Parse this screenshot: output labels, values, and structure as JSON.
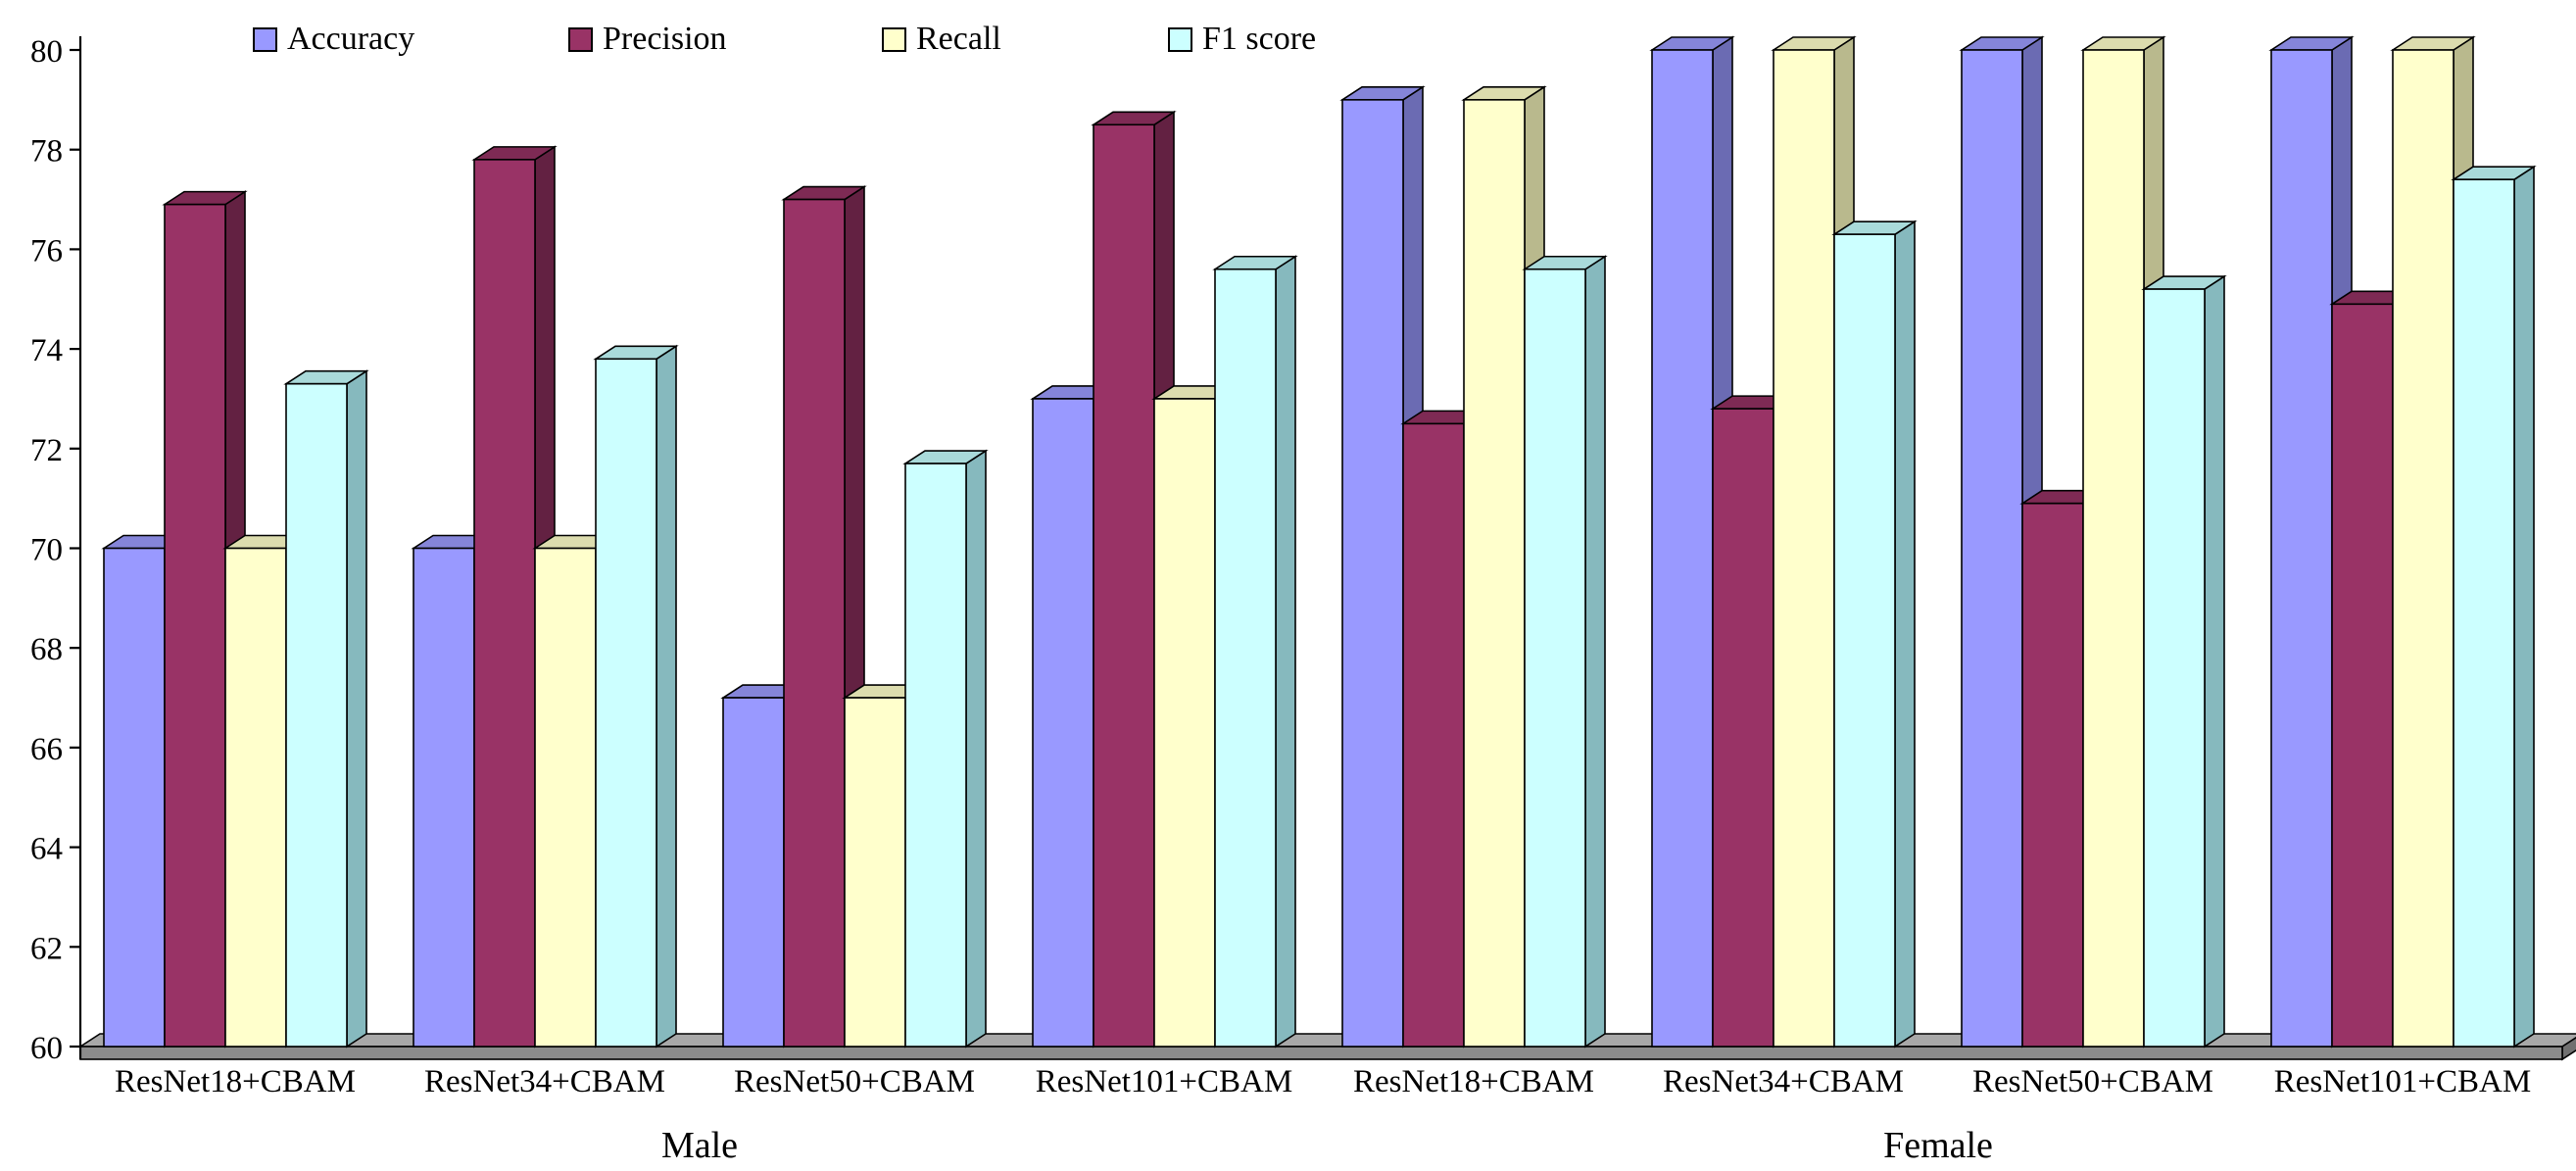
{
  "chart_data": {
    "type": "bar",
    "style": "3d-extruded-bars",
    "title": "",
    "xlabel": "",
    "ylabel": "",
    "ylim": [
      60,
      80
    ],
    "yticks": [
      60,
      62,
      64,
      66,
      68,
      70,
      72,
      74,
      76,
      78,
      80
    ],
    "grid": false,
    "legend_position": "top",
    "groups": [
      "Male",
      "Female"
    ],
    "categories": [
      "ResNet18+CBAM",
      "ResNet34+CBAM",
      "ResNet50+CBAM",
      "ResNet101+CBAM",
      "ResNet18+CBAM",
      "ResNet34+CBAM",
      "ResNet50+CBAM",
      "ResNet101+CBAM"
    ],
    "category_groups": [
      "Male",
      "Male",
      "Male",
      "Male",
      "Female",
      "Female",
      "Female",
      "Female"
    ],
    "series": [
      {
        "name": "Accuracy",
        "color": "#9999ff",
        "top": "#8585d9",
        "side": "#6b6bb3",
        "values": [
          70,
          70,
          67,
          73,
          79,
          80,
          80,
          80
        ]
      },
      {
        "name": "Precision",
        "color": "#993366",
        "top": "#7e2a54",
        "side": "#632142",
        "values": [
          76.9,
          77.8,
          77.0,
          78.5,
          72.5,
          72.8,
          70.9,
          74.9
        ]
      },
      {
        "name": "Recall",
        "color": "#ffffcc",
        "top": "#dcdcae",
        "side": "#b9b98d",
        "values": [
          70,
          70,
          67,
          73,
          79,
          80,
          80,
          80
        ]
      },
      {
        "name": "F1 score",
        "color": "#ccffff",
        "top": "#a9dada",
        "side": "#86b9be",
        "values": [
          73.3,
          73.8,
          71.7,
          75.6,
          75.6,
          76.3,
          75.2,
          77.4
        ]
      }
    ],
    "colors": {
      "background": "#ffffff",
      "text": "#000000",
      "axis": "#000000",
      "floor_top": "#a8a8a8",
      "floor_front": "#8c8c8c",
      "floor_side": "#707070"
    }
  }
}
